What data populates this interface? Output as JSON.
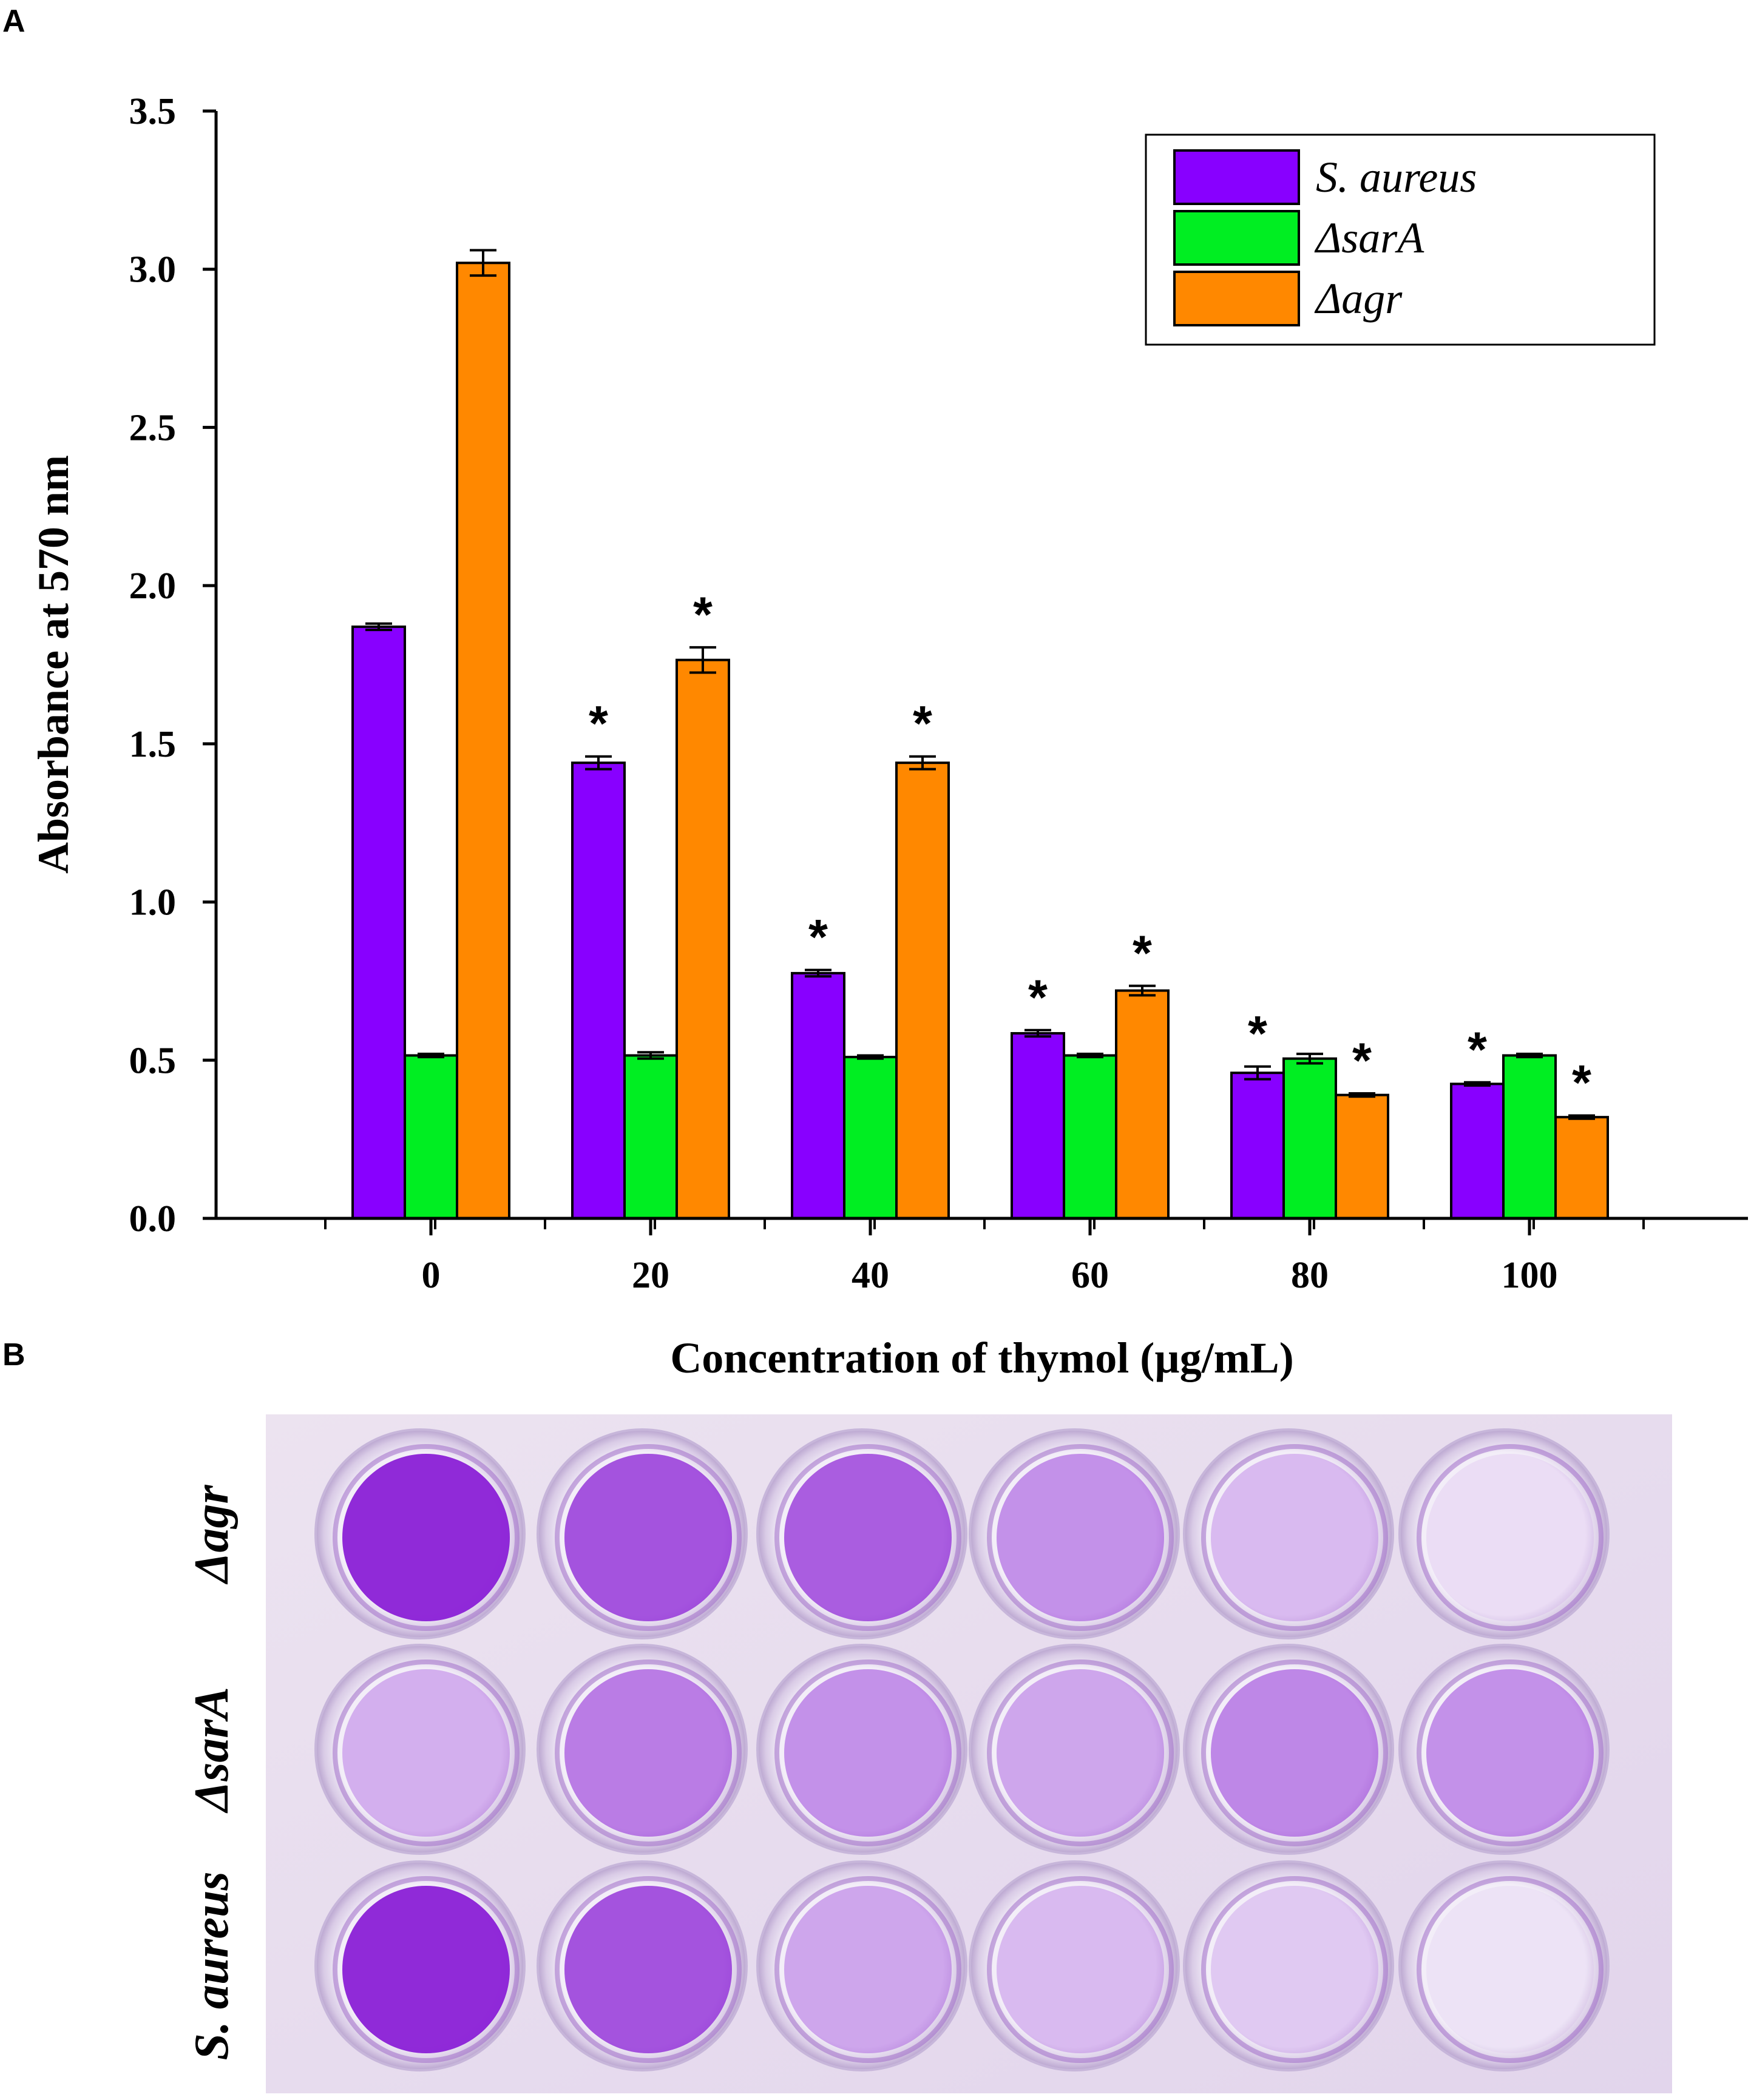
{
  "panels": {
    "a_label": "A",
    "b_label": "B"
  },
  "chart_data": {
    "type": "bar",
    "title": "",
    "xlabel": "Concentration of thymol (µg/mL)",
    "ylabel": "Absorbance at 570 nm",
    "ylim": [
      0,
      3.5
    ],
    "yticks": [
      "0.0",
      "0.5",
      "1.0",
      "1.5",
      "2.0",
      "2.5",
      "3.0",
      "3.5"
    ],
    "categories": [
      "0",
      "20",
      "40",
      "60",
      "80",
      "100"
    ],
    "legend_position": "top-right",
    "series": [
      {
        "name": "S. aureus",
        "color": "#8800ff",
        "values": [
          1.87,
          1.44,
          0.775,
          0.585,
          0.46,
          0.425
        ],
        "errors": [
          0.01,
          0.02,
          0.01,
          0.01,
          0.02,
          0.005
        ],
        "significance": [
          "",
          "*",
          "*",
          "*",
          "*",
          "*"
        ]
      },
      {
        "name": "ΔsarA",
        "color": "#00ee22",
        "values": [
          0.515,
          0.515,
          0.51,
          0.515,
          0.505,
          0.515
        ],
        "errors": [
          0.005,
          0.01,
          0.005,
          0.005,
          0.015,
          0.005
        ],
        "significance": [
          "",
          "",
          "",
          "",
          "",
          ""
        ]
      },
      {
        "name": "Δagr",
        "color": "#ff8800",
        "values": [
          3.02,
          1.765,
          1.44,
          0.72,
          0.39,
          0.32
        ],
        "errors": [
          0.04,
          0.04,
          0.02,
          0.015,
          0.005,
          0.005
        ],
        "significance": [
          "",
          "*",
          "*",
          "*",
          "*",
          "*"
        ]
      }
    ]
  },
  "plate_photo": {
    "rows": [
      "Δagr",
      "ΔsarA",
      "S. aureus"
    ],
    "columns": 6,
    "stain_intensity": [
      [
        0.95,
        0.75,
        0.7,
        0.45,
        0.25,
        0.08
      ],
      [
        0.3,
        0.55,
        0.45,
        0.35,
        0.5,
        0.45
      ],
      [
        0.95,
        0.75,
        0.35,
        0.25,
        0.18,
        0.05
      ]
    ],
    "stain_color": "#8a1fd6"
  }
}
